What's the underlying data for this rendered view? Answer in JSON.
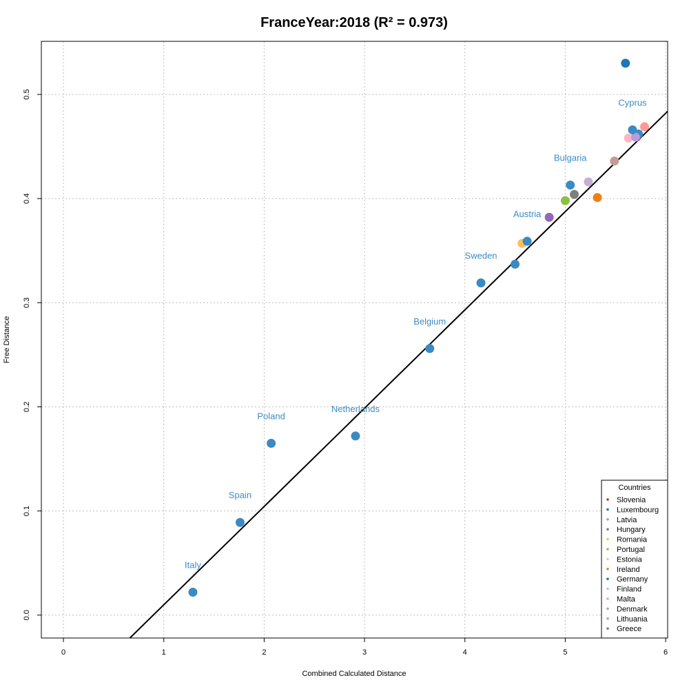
{
  "chart_data": {
    "type": "scatter",
    "title": "FranceYear:2018 (R² = 0.973)",
    "xlabel": "Combined Calculated Distance",
    "ylabel": "Free Distance",
    "xlim": [
      -0.22,
      6.02
    ],
    "ylim": [
      -0.022,
      0.551
    ],
    "xticks": [
      0,
      1,
      2,
      3,
      4,
      5,
      6
    ],
    "yticks": [
      0.0,
      0.1,
      0.2,
      0.3,
      0.4,
      0.5
    ],
    "grid": true,
    "regression_line": {
      "slope": 0.0944,
      "intercept": -0.0845
    },
    "label_color": "#3b8cc4",
    "labeled_points": [
      {
        "label": "Italy",
        "x": 1.29,
        "y": 0.022,
        "color": "#3a8ac3"
      },
      {
        "label": "Spain",
        "x": 1.76,
        "y": 0.089,
        "color": "#3a8ac3"
      },
      {
        "label": "Poland",
        "x": 2.07,
        "y": 0.165,
        "color": "#3a8ac3"
      },
      {
        "label": "Netherlands",
        "x": 2.91,
        "y": 0.172,
        "color": "#3a8ac3"
      },
      {
        "label": "Belgium",
        "x": 3.65,
        "y": 0.256,
        "color": "#3a8ac3"
      },
      {
        "label": "Sweden",
        "x": 4.16,
        "y": 0.319,
        "color": "#3a8ac3"
      },
      {
        "label": "Austria",
        "x": 4.62,
        "y": 0.359,
        "color": "#3a8ac3"
      },
      {
        "label": "Bulgaria",
        "x": 5.05,
        "y": 0.413,
        "color": "#3a8ac3"
      },
      {
        "label": "Cyprus",
        "x": 5.67,
        "y": 0.466,
        "color": "#3a8ac3"
      }
    ],
    "points": [
      {
        "x": 4.5,
        "y": 0.337,
        "color": "#3a8ac3"
      },
      {
        "x": 4.57,
        "y": 0.357,
        "color": "#fbbf5c"
      },
      {
        "x": 4.84,
        "y": 0.382,
        "color": "#9467bd"
      },
      {
        "x": 5.0,
        "y": 0.398,
        "color": "#8dbf44"
      },
      {
        "x": 5.09,
        "y": 0.404,
        "color": "#7f7f7f"
      },
      {
        "x": 5.23,
        "y": 0.416,
        "color": "#c5b0d5"
      },
      {
        "x": 5.32,
        "y": 0.401,
        "color": "#f07f14"
      },
      {
        "x": 5.49,
        "y": 0.436,
        "color": "#c49c94"
      },
      {
        "x": 5.6,
        "y": 0.53,
        "color": "#1f77b4"
      },
      {
        "x": 5.63,
        "y": 0.458,
        "color": "#ffb6c1"
      },
      {
        "x": 5.71,
        "y": 0.459,
        "color": "#d62728"
      },
      {
        "x": 5.73,
        "y": 0.462,
        "color": "#3a8ac3"
      },
      {
        "x": 5.79,
        "y": 0.469,
        "color": "#ff9896"
      },
      {
        "x": 5.7,
        "y": 0.459,
        "color": "#b39ddb"
      }
    ],
    "legend": {
      "title": "Countries",
      "placement": "bottom-right",
      "entries": [
        {
          "name": "Slovenia",
          "color": "#d62728"
        },
        {
          "name": "Luxembourg",
          "color": "#1f77b4"
        },
        {
          "name": "Latvia",
          "color": "#9c9ede"
        },
        {
          "name": "Hungary",
          "color": "#7f7f7f"
        },
        {
          "name": "Romania",
          "color": "#fbbf5c"
        },
        {
          "name": "Portugal",
          "color": "#8dbf44"
        },
        {
          "name": "Estonia",
          "color": "#ffb6c1"
        },
        {
          "name": "Ireland",
          "color": "#f07f14"
        },
        {
          "name": "Germany",
          "color": "#1f77b4"
        },
        {
          "name": "Finland",
          "color": "#aec7e8"
        },
        {
          "name": "Malta",
          "color": "#ff9896"
        },
        {
          "name": "Denmark",
          "color": "#c49c94"
        },
        {
          "name": "Lithuania",
          "color": "#c49c94"
        },
        {
          "name": "Greece",
          "color": "#9467bd"
        }
      ]
    }
  }
}
